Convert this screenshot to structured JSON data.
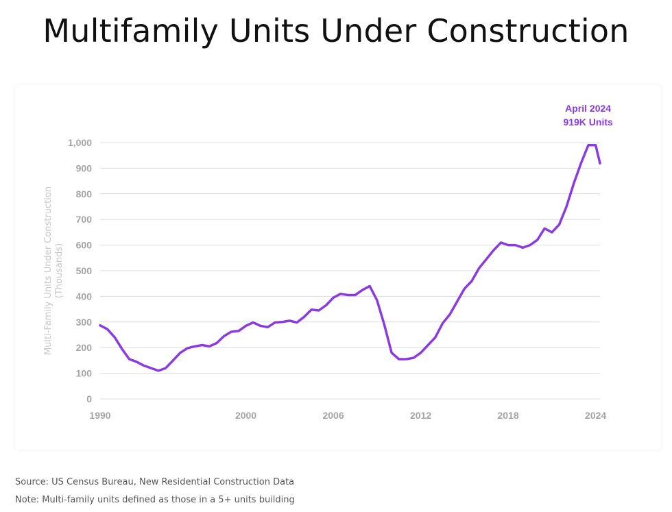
{
  "title": "Multifamily Units Under Construction",
  "colors": {
    "series": "#8a3be0",
    "grid": "#dcdcdc",
    "tick_text": "#a4a4a4",
    "ylabel_text": "#c8c8c8",
    "title_text": "#111111",
    "note_text": "#555555"
  },
  "chart_data": {
    "type": "line",
    "title": "Multifamily Units Under Construction",
    "ylabel": "Multi-Family Units Under Construction",
    "ylabel_sub": "(Thousands)",
    "xlabel": "",
    "ylim": [
      0,
      1000
    ],
    "xlim": [
      1990,
      2024.3
    ],
    "grid": true,
    "legend": "none",
    "y_ticks": [
      {
        "value": 0,
        "label": "0"
      },
      {
        "value": 100,
        "label": "100"
      },
      {
        "value": 200,
        "label": "200"
      },
      {
        "value": 300,
        "label": "300"
      },
      {
        "value": 400,
        "label": "400"
      },
      {
        "value": 500,
        "label": "500"
      },
      {
        "value": 600,
        "label": "600"
      },
      {
        "value": 700,
        "label": "700"
      },
      {
        "value": 800,
        "label": "800"
      },
      {
        "value": 900,
        "label": "900"
      },
      {
        "value": 1000,
        "label": "1,000"
      }
    ],
    "x_ticks": [
      {
        "value": 1990,
        "label": "1990"
      },
      {
        "value": 2000,
        "label": "2000"
      },
      {
        "value": 2006,
        "label": "2006"
      },
      {
        "value": 2012,
        "label": "2012"
      },
      {
        "value": 2018,
        "label": "2018"
      },
      {
        "value": 2024,
        "label": "2024"
      }
    ],
    "series": [
      {
        "x": [
          1990.0,
          1990.5,
          1991.0,
          1991.5,
          1992.0,
          1992.5,
          1993.0,
          1993.5,
          1994.0,
          1994.5,
          1995.0,
          1995.5,
          1996.0,
          1996.5,
          1997.0,
          1997.5,
          1998.0,
          1998.5,
          1999.0,
          1999.5,
          2000.0,
          2000.5,
          2001.0,
          2001.5,
          2002.0,
          2002.5,
          2003.0,
          2003.5,
          2004.0,
          2004.5,
          2005.0,
          2005.5,
          2006.0,
          2006.5,
          2007.0,
          2007.5,
          2008.0,
          2008.5,
          2009.0,
          2009.5,
          2010.0,
          2010.5,
          2011.0,
          2011.5,
          2012.0,
          2012.5,
          2013.0,
          2013.5,
          2014.0,
          2014.5,
          2015.0,
          2015.5,
          2016.0,
          2016.5,
          2017.0,
          2017.5,
          2018.0,
          2018.5,
          2019.0,
          2019.5,
          2020.0,
          2020.5,
          2021.0,
          2021.5,
          2022.0,
          2022.5,
          2023.0,
          2023.5,
          2024.0,
          2024.3
        ],
        "values": [
          287,
          272,
          240,
          195,
          155,
          145,
          130,
          120,
          110,
          120,
          150,
          180,
          198,
          205,
          210,
          205,
          218,
          245,
          262,
          265,
          285,
          298,
          285,
          280,
          298,
          300,
          305,
          298,
          320,
          348,
          345,
          365,
          395,
          410,
          405,
          405,
          425,
          440,
          385,
          290,
          180,
          155,
          155,
          160,
          180,
          210,
          240,
          295,
          330,
          380,
          430,
          460,
          510,
          545,
          580,
          610,
          600,
          600,
          590,
          600,
          620,
          665,
          650,
          680,
          750,
          840,
          920,
          990,
          990,
          919
        ]
      }
    ],
    "annotation": {
      "x": 2024.0,
      "value": 919,
      "line1": "April 2024",
      "line2": "919K Units"
    }
  },
  "notes": {
    "source": "Source: US Census Bureau, New Residential Construction Data",
    "definition": "Note: Multi-family units defined as those in a 5+ units building"
  }
}
